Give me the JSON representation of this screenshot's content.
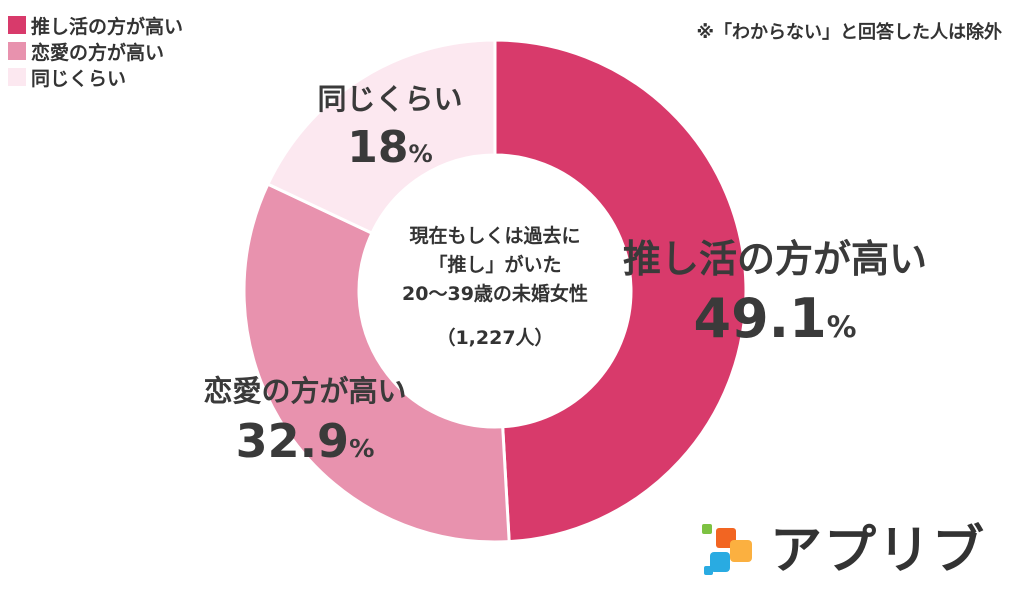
{
  "colors": {
    "oshi": "#d83a6b",
    "renai": "#e892ae",
    "onaji": "#fce8f0"
  },
  "note": "※「わからない」と回答した人は除外",
  "center": {
    "line1": "現在もしくは過去に",
    "line2": "「推し」がいた",
    "line3": "20〜39歳の未婚女性",
    "count": "（1,227人）"
  },
  "logo": {
    "text": "アプリブ",
    "icon": "app-blocks-icon"
  },
  "chart_data": {
    "type": "pie",
    "donut": true,
    "legend_position": "top-left",
    "categories": [
      "推し活の方が高い",
      "恋愛の方が高い",
      "同じくらい"
    ],
    "values": [
      49.1,
      32.9,
      18
    ],
    "value_labels": [
      "49.1",
      "32.9",
      "18"
    ],
    "unit": "%"
  }
}
